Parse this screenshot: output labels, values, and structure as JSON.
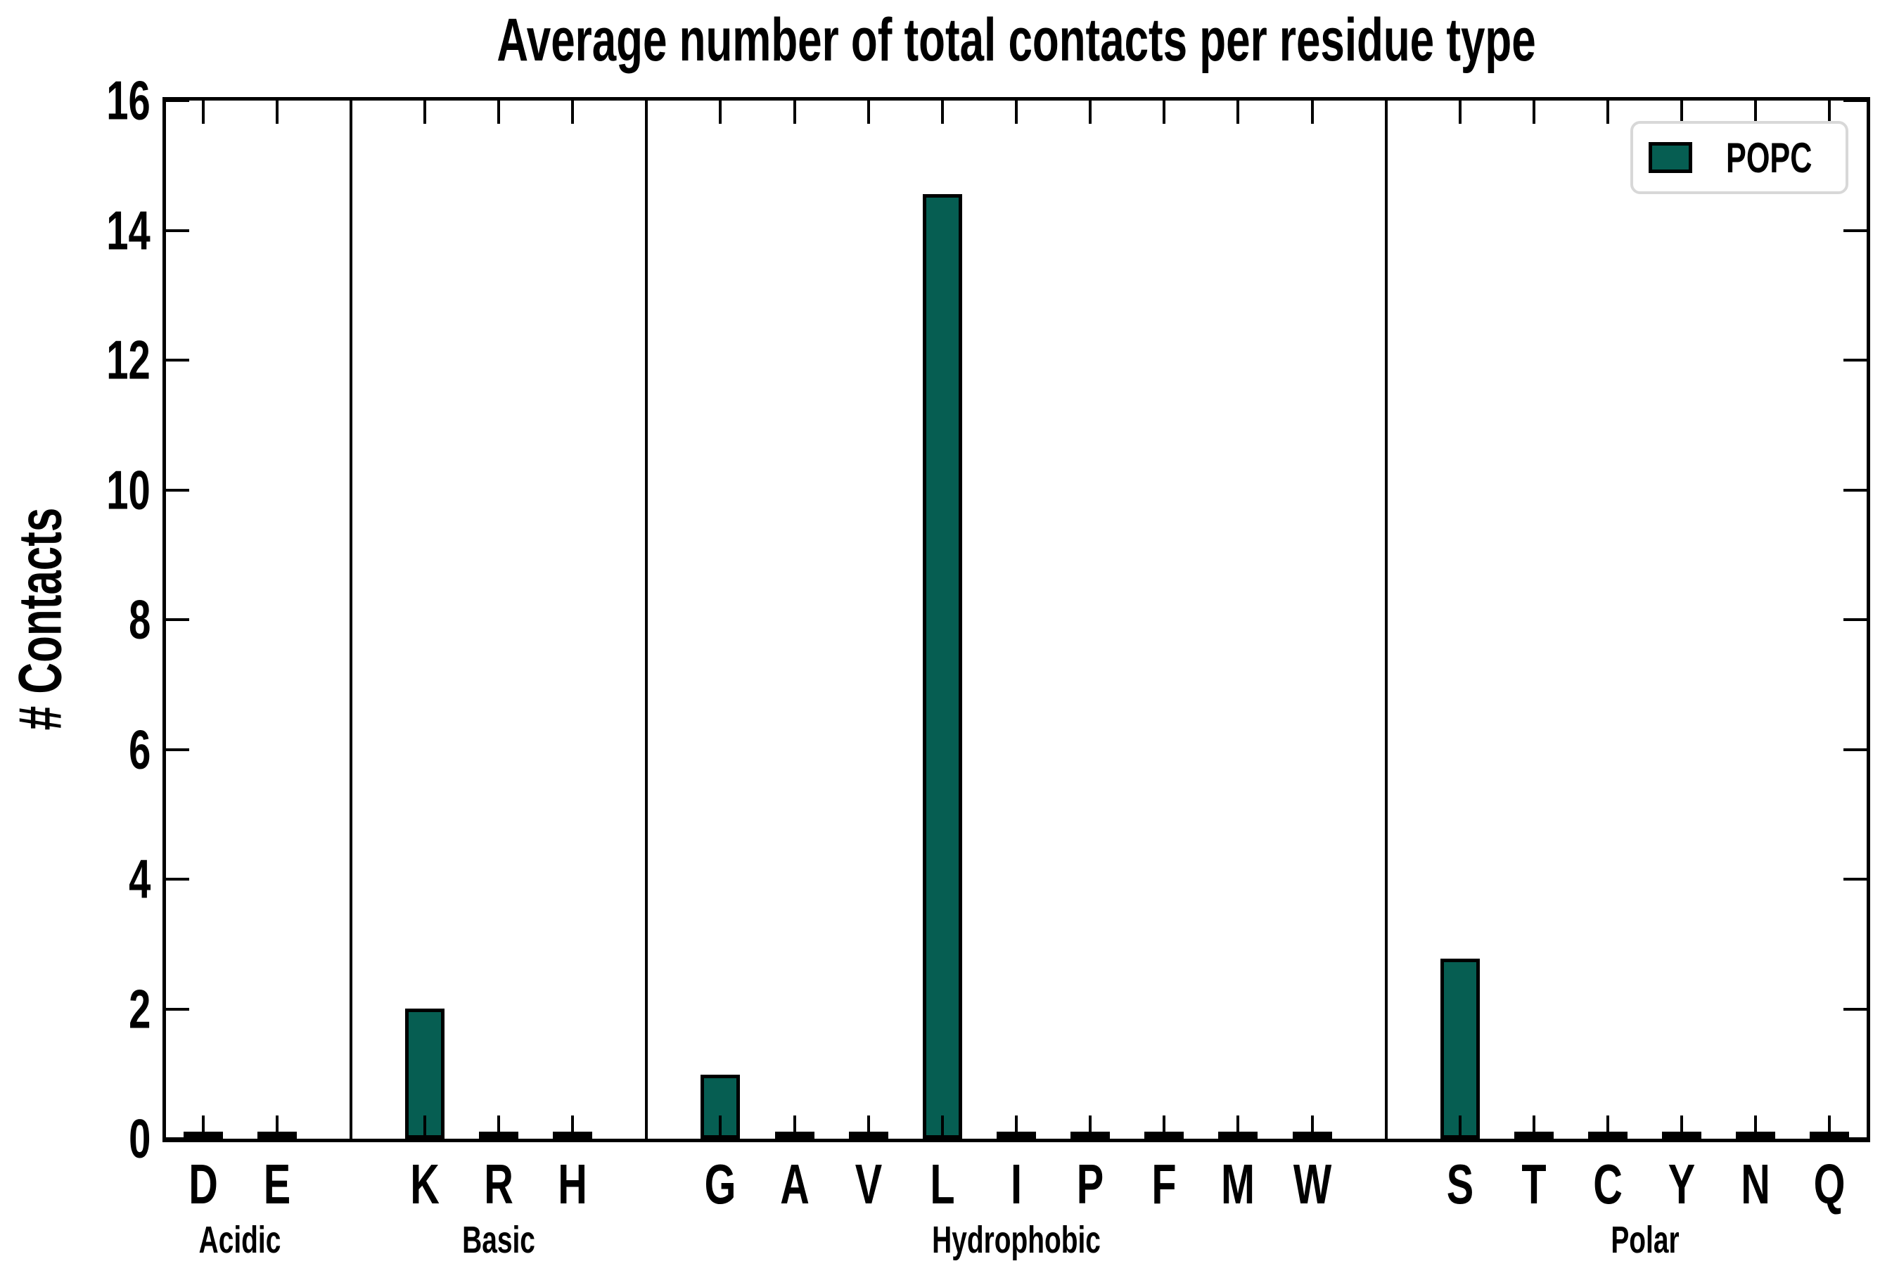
{
  "title": "Average number of total contacts per residue type",
  "y_axis": {
    "label": "# Contacts",
    "ticks": [
      0,
      2,
      4,
      6,
      8,
      10,
      12,
      14,
      16
    ],
    "range": [
      0,
      16
    ]
  },
  "legend": {
    "label": "POPC",
    "swatch_color": "#065e52"
  },
  "colors": {
    "bar_fill": "#065e52",
    "bar_edge": "#000000",
    "axis": "#000000",
    "legend_border": "#d8d8d8"
  },
  "chart_data": {
    "type": "bar",
    "title": "Average number of total contacts per residue type",
    "xlabel": "",
    "ylabel": "# Contacts",
    "ylim": [
      0,
      16
    ],
    "yticks": [
      0,
      2,
      4,
      6,
      8,
      10,
      12,
      14,
      16
    ],
    "legend_position": "upper right",
    "grid": false,
    "series": [
      {
        "name": "POPC",
        "color": "#065e52"
      }
    ],
    "groups": [
      {
        "label": "Acidic",
        "residues": [
          "D",
          "E"
        ],
        "values": [
          0.03,
          0.03
        ]
      },
      {
        "label": "Basic",
        "residues": [
          "K",
          "R",
          "H"
        ],
        "values": [
          1.95,
          0.03,
          0.03
        ]
      },
      {
        "label": "Hydrophobic",
        "residues": [
          "G",
          "A",
          "V",
          "L",
          "I",
          "P",
          "F",
          "M",
          "W"
        ],
        "values": [
          0.93,
          0.03,
          0.03,
          14.5,
          0.03,
          0.03,
          0.03,
          0.03,
          0.03
        ]
      },
      {
        "label": "Polar",
        "residues": [
          "S",
          "T",
          "C",
          "Y",
          "N",
          "Q"
        ],
        "values": [
          2.72,
          0.03,
          0.03,
          0.03,
          0.03,
          0.03
        ]
      }
    ]
  }
}
